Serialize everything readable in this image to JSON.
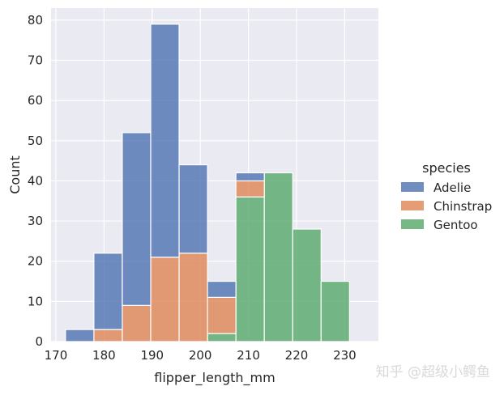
{
  "chart_data": {
    "type": "bar",
    "stacked": true,
    "xlabel": "flipper_length_mm",
    "ylabel": "Count",
    "xlim": [
      169,
      237
    ],
    "ylim": [
      0,
      83
    ],
    "x_ticks": [
      170,
      180,
      190,
      200,
      210,
      220,
      230
    ],
    "y_ticks": [
      0,
      10,
      20,
      30,
      40,
      50,
      60,
      70,
      80
    ],
    "grid": true,
    "bin_edges": [
      172,
      177.9,
      183.8,
      189.7,
      195.6,
      201.5,
      207.4,
      213.3,
      219.2,
      225.1,
      231
    ],
    "series": [
      {
        "name": "Gentoo",
        "color": "#55a868",
        "values": [
          0,
          0,
          0,
          0,
          0,
          2,
          36,
          42,
          28,
          15
        ]
      },
      {
        "name": "Chinstrap",
        "color": "#dd8452",
        "values": [
          0,
          3,
          9,
          21,
          22,
          9,
          4,
          0,
          0,
          0
        ]
      },
      {
        "name": "Adelie",
        "color": "#4c72b0",
        "values": [
          3,
          19,
          43,
          58,
          22,
          4,
          2,
          0,
          0,
          0
        ]
      }
    ],
    "legend": {
      "title": "species",
      "position": "right",
      "entries": [
        {
          "label": "Adelie",
          "color": "#4c72b0"
        },
        {
          "label": "Chinstrap",
          "color": "#dd8452"
        },
        {
          "label": "Gentoo",
          "color": "#55a868"
        }
      ]
    }
  },
  "watermark": "知乎 @超级小鳄鱼",
  "colors": {
    "panel_background": "#eaeaf2",
    "grid": "#ffffff"
  }
}
